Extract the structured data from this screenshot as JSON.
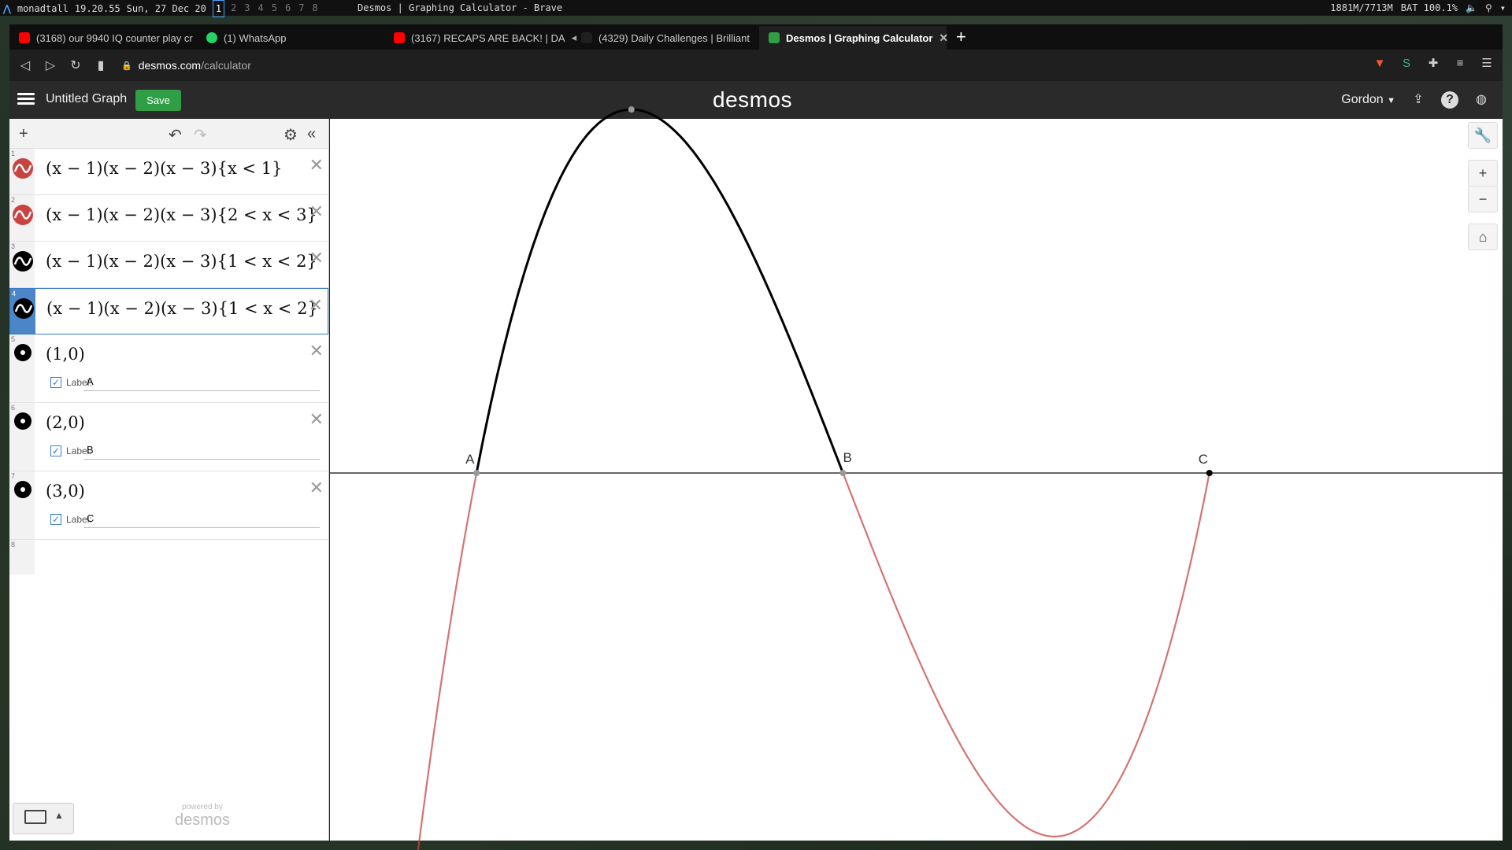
{
  "wm": {
    "user": "monadtall",
    "time": "19.20.55",
    "date": "Sun, 27 Dec 20",
    "workspaces": [
      "1",
      "2",
      "3",
      "4",
      "5",
      "6",
      "7",
      "8"
    ],
    "window_title": "Desmos | Graphing Calculator - Brave",
    "mem": "1881M/7713M",
    "battery": "BAT 100.1%"
  },
  "tabs": [
    {
      "label": "(3168) our 9940 IQ counter play cr",
      "color": "#ff0000"
    },
    {
      "label": "(1) WhatsApp",
      "color": "#25d366"
    },
    {
      "label": "(3167) RECAPS ARE BACK! | DA",
      "color": "#ff0000"
    },
    {
      "label": "(4329) Daily Challenges | Brilliant",
      "color": "#444444"
    },
    {
      "label": "Desmos | Graphing Calculator",
      "color": "#2f9e44"
    }
  ],
  "address": {
    "host": "desmos.com",
    "path": "/calculator"
  },
  "header": {
    "graph_title": "Untitled Graph",
    "save_label": "Save",
    "logo": "desmos",
    "user": "Gordon"
  },
  "expressions": [
    {
      "num": "1",
      "latex": "(x − 1)(x − 2)(x − 3){x < 1}",
      "color": "#c74440",
      "kind": "curve"
    },
    {
      "num": "2",
      "latex": "(x − 1)(x − 2)(x − 3){2 < x < 3}",
      "color": "#c74440",
      "kind": "curve"
    },
    {
      "num": "3",
      "latex": "(x − 1)(x − 2)(x − 3){1 < x < 2}",
      "color": "#000000",
      "kind": "curve"
    },
    {
      "num": "4",
      "latex": "(x − 1)(x − 2)(x − 3){1 < x < 2}",
      "color": "#000000",
      "kind": "curve"
    },
    {
      "num": "5",
      "latex": "(1,0)",
      "color": "#000000",
      "kind": "point",
      "label_text": "Label:",
      "label_value": "A"
    },
    {
      "num": "6",
      "latex": "(2,0)",
      "color": "#000000",
      "kind": "point",
      "label_text": "Label:",
      "label_value": "B"
    },
    {
      "num": "7",
      "latex": "(3,0)",
      "color": "#000000",
      "kind": "point",
      "label_text": "Label:",
      "label_value": "C"
    },
    {
      "num": "8"
    }
  ],
  "powered": {
    "small": "powered by",
    "large": "desmos"
  },
  "graph": {
    "x_range": [
      0.6,
      3.8
    ],
    "point_labels": [
      "A",
      "B",
      "C"
    ]
  }
}
